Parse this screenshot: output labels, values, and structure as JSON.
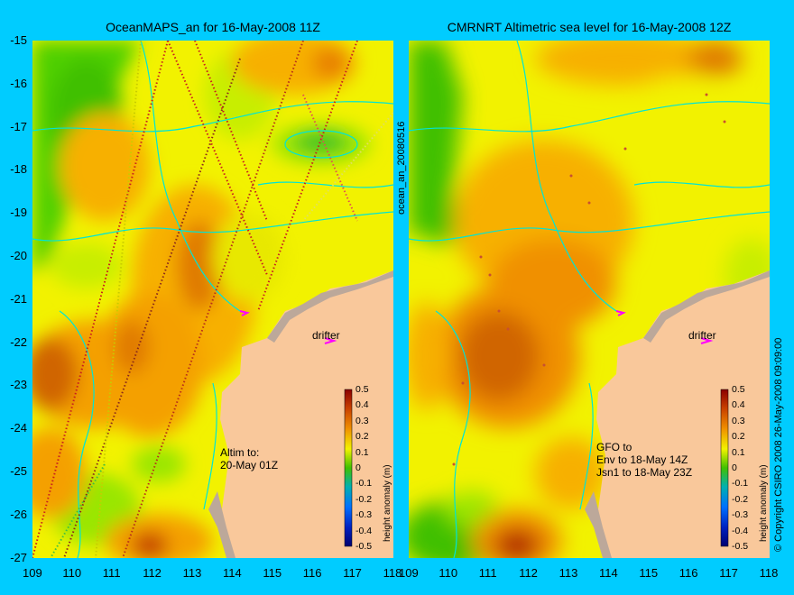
{
  "left_title": "OceanMAPS_an for 16-May-2008 11Z",
  "right_title": "CMRNRT Altimetric sea level  for 16-May-2008 12Z",
  "y_ticks": [
    "-15",
    "-16",
    "-17",
    "-18",
    "-19",
    "-20",
    "-21",
    "-22",
    "-23",
    "-24",
    "-25",
    "-26",
    "-27"
  ],
  "x_ticks": [
    "109",
    "110",
    "111",
    "112",
    "113",
    "114",
    "115",
    "116",
    "117",
    "118"
  ],
  "colorbar": {
    "ticks": [
      "0.5",
      "0.4",
      "0.3",
      "0.2",
      "0.1",
      "0",
      "-0.1",
      "-0.2",
      "-0.3",
      "-0.4",
      "-0.5"
    ],
    "label": "height anomaly (m)"
  },
  "left_panel": {
    "drifter_label": "drifter",
    "altim_lines": [
      "Altim to:",
      "20-May 01Z"
    ]
  },
  "right_panel": {
    "drifter_label": "drifter",
    "gfo_lines": [
      "GFO to",
      "Env to 18-May 14Z",
      "Jsn1 to 18-May 23Z"
    ]
  },
  "side_label_center": "ocean_an_20080516",
  "side_label_right": "© Copyright CSIRO 2008   26-May-2008 09:09:00",
  "colors": {
    "background": "#00ccff",
    "land": "#f9c89b",
    "coast_shelf": "#bca89a",
    "contour": "#00e5d6"
  },
  "map_data": {
    "lon_range": [
      109,
      118
    ],
    "lat_range": [
      -27,
      -15
    ]
  }
}
